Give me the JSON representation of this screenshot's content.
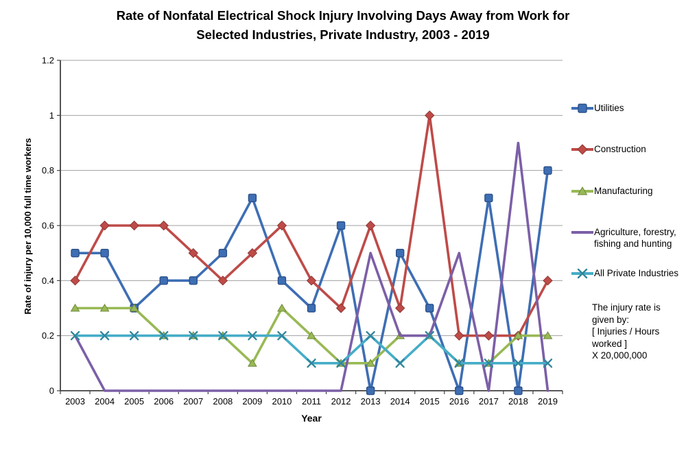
{
  "page": {
    "background": "#ffffff"
  },
  "title_lines": [
    "Rate of Nonfatal Electrical Shock Injury Involving Days Away from Work for",
    "Selected Industries, Private Industry, 2003 - 2019"
  ],
  "chart_data": {
    "type": "line",
    "title": "Rate of Nonfatal Electrical Shock Injury Involving Days Away from Work for Selected Industries, Private Industry, 2003 - 2019",
    "xlabel": "Year",
    "ylabel": "Rate of injury per 10,000 full time workers",
    "ylim": [
      0,
      1.2
    ],
    "yticks": [
      0,
      0.2,
      0.4,
      0.6,
      0.8,
      1,
      1.2
    ],
    "ytick_labels": [
      "0",
      "0.2",
      "0.4",
      "0.6",
      "0.8",
      "1",
      "1.2"
    ],
    "grid": true,
    "legend_position": "right",
    "categories": [
      "2003",
      "2004",
      "2005",
      "2006",
      "2007",
      "2008",
      "2009",
      "2010",
      "2011",
      "2012",
      "2013",
      "2014",
      "2015",
      "2016",
      "2017",
      "2018",
      "2019"
    ],
    "series": [
      {
        "name": "Utilities",
        "color": "#3E6EB4",
        "marker_border": "#2C5188",
        "marker": "square",
        "values": [
          0.5,
          0.5,
          0.3,
          0.4,
          0.4,
          0.5,
          0.7,
          0.4,
          0.3,
          0.6,
          0,
          0.5,
          0.3,
          0,
          0.7,
          0,
          0.8
        ]
      },
      {
        "name": "Construction",
        "color": "#BE4B48",
        "marker_border": "#8E3734",
        "marker": "diamond",
        "values": [
          0.4,
          0.6,
          0.6,
          0.6,
          0.5,
          0.4,
          0.5,
          0.6,
          0.4,
          0.3,
          0.6,
          0.3,
          1.0,
          0.2,
          0.2,
          0.2,
          0.4
        ]
      },
      {
        "name": "Manufacturing",
        "color": "#98B954",
        "marker_border": "#71893C",
        "marker": "triangle",
        "values": [
          0.3,
          0.3,
          0.3,
          0.2,
          0.2,
          0.2,
          0.1,
          0.3,
          0.2,
          0.1,
          0.1,
          0.2,
          0.2,
          0.1,
          0.1,
          0.2,
          0.2
        ]
      },
      {
        "name": "Agriculture, forestry, fishing and hunting",
        "color": "#7C5FA7",
        "marker_border": "#5D467E",
        "marker": "none",
        "values": [
          0.2,
          0,
          0,
          0,
          0,
          0,
          0,
          0,
          0,
          0,
          0.5,
          0.2,
          0.2,
          0.5,
          0,
          0.9,
          0
        ]
      },
      {
        "name": "All Private Industries",
        "color": "#45ADC8",
        "marker_border": "#31859B",
        "marker": "x",
        "values": [
          0.2,
          0.2,
          0.2,
          0.2,
          0.2,
          0.2,
          0.2,
          0.2,
          0.1,
          0.1,
          0.2,
          0.1,
          0.2,
          0.1,
          0.1,
          0.1,
          0.1
        ]
      }
    ],
    "annotation": "The injury rate is\ngiven by:\n[ Injuries / Hours\nworked ]\nX 20,000,000",
    "colors": {
      "gridline": "#A0A0A0",
      "axis": "#404040",
      "text": "#000000"
    }
  }
}
